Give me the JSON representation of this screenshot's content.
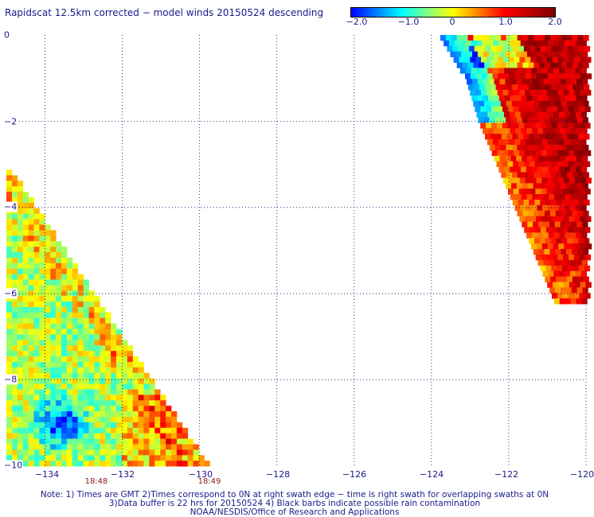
{
  "title": "Rapidscat 12.5km corrected − model winds 20150524 descending",
  "colorbar": {
    "ticks": [
      "−2.0",
      "−1.0",
      "0",
      "1.0",
      "2.0"
    ],
    "range": [
      -2.0,
      2.0
    ],
    "colors": [
      "#0000ff",
      "#00ffff",
      "#ffff00",
      "#ff0000",
      "#800000"
    ]
  },
  "map": {
    "lon_range": [
      -135.0,
      -120.0
    ],
    "lat_range": [
      0,
      -10
    ],
    "x_ticks": [
      "−134",
      "−132",
      "−130",
      "−128",
      "−126",
      "−124",
      "−122",
      "−120"
    ],
    "y_ticks": [
      "0",
      "−2",
      "−4",
      "−6",
      "−8",
      "−10"
    ],
    "grid": "dotted",
    "swath_times": [
      {
        "label": "18:48",
        "lon": -132.0
      },
      {
        "label": "18:49",
        "lon": -130.0
      }
    ]
  },
  "notes": [
    "Note: 1) Times are GMT 2)Times correspond to 0N at right swath edge − time is right swath for overlapping swaths at 0N",
    "3)Data buffer is 22 hrs for 20150524 4) Black barbs indicate possible rain contamination",
    "NOAA/NESDIS/Office of Research and Applications"
  ]
}
